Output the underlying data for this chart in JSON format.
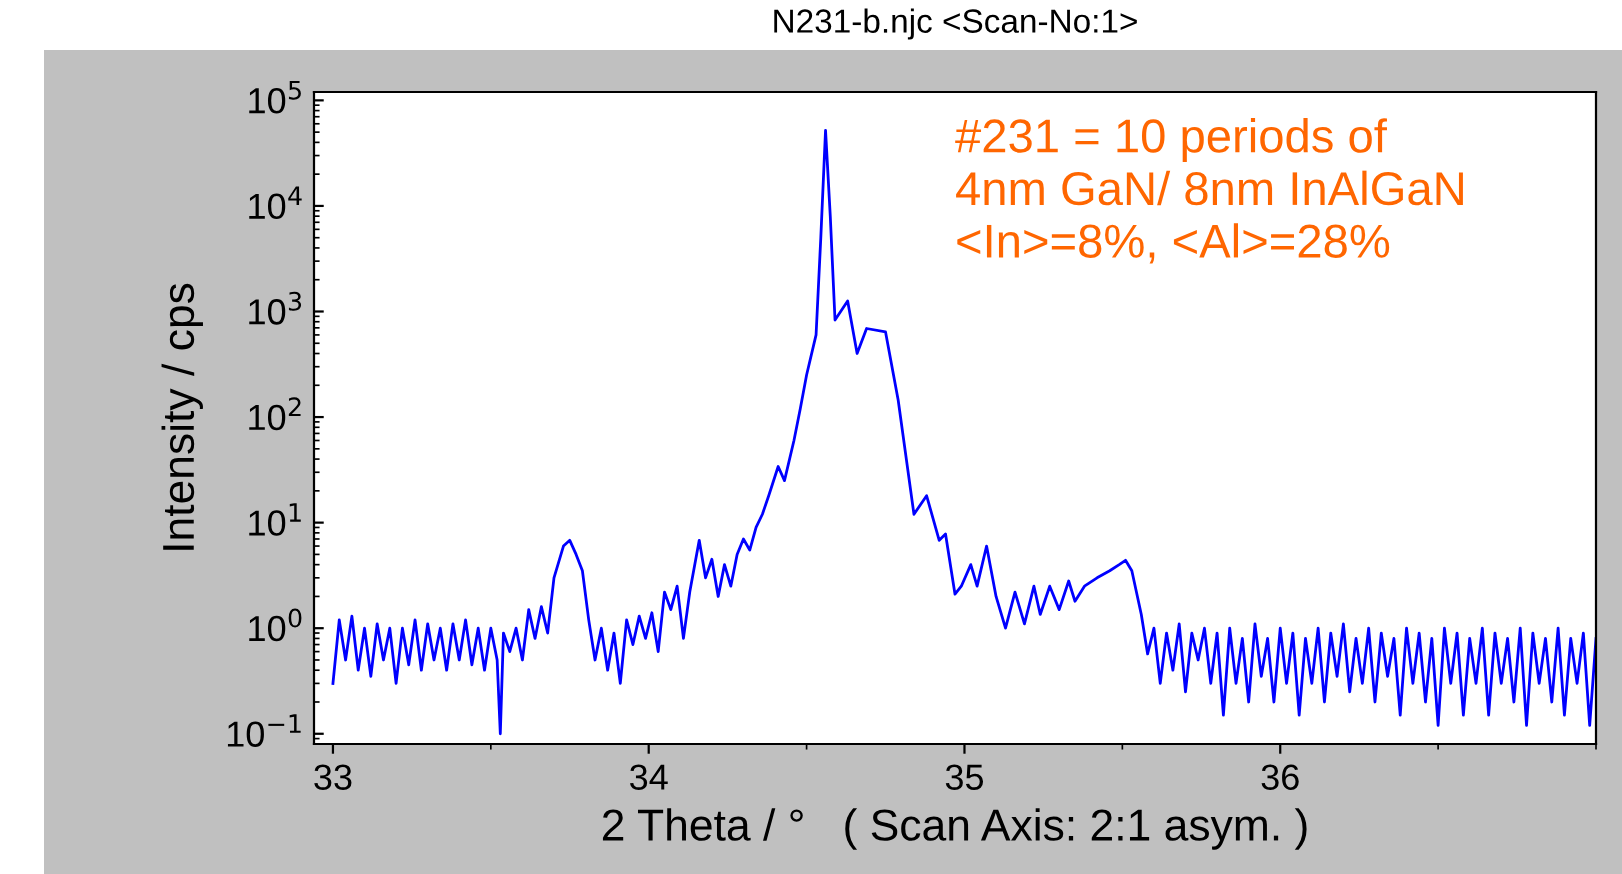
{
  "chart_data": {
    "type": "line",
    "title": "N231-b.njc <Scan-No:1>",
    "xlabel": "2 Theta / °   ( Scan Axis: 2:1 asym. )",
    "ylabel": "Intensity / cps",
    "annotations": [
      "#231 = 10 periods of\n4nm GaN/ 8nm InAlGaN\n<In>=8%, <Al>=28%"
    ],
    "log": "y",
    "grid": false,
    "legend": false,
    "marker": "none",
    "line_style": "solid",
    "xlim": [
      32.94,
      37.0
    ],
    "xticks": [
      33,
      34,
      35,
      36
    ],
    "ylim": [
      0.08,
      120000
    ],
    "yticks": [
      {
        "value": 0.1,
        "label": "10$^{−1}$"
      },
      {
        "value": 1,
        "label": "10$^{0}$"
      },
      {
        "value": 10,
        "label": "10$^{1}$"
      },
      {
        "value": 100,
        "label": "10$^{2}$"
      },
      {
        "value": 1000,
        "label": "10$^{3}$"
      },
      {
        "value": 10000,
        "label": "10$^{4}$"
      },
      {
        "value": 100000,
        "label": "10$^{5}$"
      }
    ],
    "series": [
      {
        "color": "#0000ff",
        "x": [
          33.0,
          33.02,
          33.04,
          33.06,
          33.08,
          33.1,
          33.12,
          33.14,
          33.16,
          33.18,
          33.2,
          33.22,
          33.24,
          33.26,
          33.28,
          33.3,
          33.32,
          33.34,
          33.36,
          33.38,
          33.4,
          33.42,
          33.44,
          33.46,
          33.48,
          33.5,
          33.52,
          33.53,
          33.54,
          33.56,
          33.58,
          33.6,
          33.62,
          33.64,
          33.66,
          33.68,
          33.7,
          33.73,
          33.75,
          33.77,
          33.79,
          33.81,
          33.83,
          33.85,
          33.87,
          33.89,
          33.91,
          33.93,
          33.95,
          33.97,
          33.99,
          34.01,
          34.03,
          34.05,
          34.07,
          34.09,
          34.11,
          34.13,
          34.16,
          34.18,
          34.2,
          34.22,
          34.24,
          34.26,
          34.28,
          34.3,
          34.32,
          34.34,
          34.36,
          34.38,
          34.41,
          34.43,
          34.46,
          34.48,
          34.5,
          34.53,
          34.545,
          34.56,
          34.575,
          34.59,
          34.63,
          34.66,
          34.69,
          34.75,
          34.79,
          34.84,
          34.88,
          34.92,
          34.94,
          34.97,
          34.99,
          35.02,
          35.04,
          35.07,
          35.1,
          35.13,
          35.16,
          35.19,
          35.22,
          35.24,
          35.27,
          35.3,
          35.33,
          35.35,
          35.38,
          35.42,
          35.46,
          35.49,
          35.51,
          35.53,
          35.56,
          35.58,
          35.6,
          35.62,
          35.64,
          35.66,
          35.68,
          35.7,
          35.72,
          35.74,
          35.76,
          35.78,
          35.8,
          35.82,
          35.84,
          35.86,
          35.88,
          35.9,
          35.92,
          35.94,
          35.96,
          35.98,
          36.0,
          36.02,
          36.04,
          36.06,
          36.08,
          36.1,
          36.12,
          36.14,
          36.16,
          36.18,
          36.2,
          36.22,
          36.24,
          36.26,
          36.28,
          36.3,
          36.32,
          36.34,
          36.36,
          36.38,
          36.4,
          36.42,
          36.44,
          36.46,
          36.48,
          36.5,
          36.52,
          36.54,
          36.56,
          36.58,
          36.6,
          36.62,
          36.64,
          36.66,
          36.68,
          36.7,
          36.72,
          36.74,
          36.76,
          36.78,
          36.8,
          36.82,
          36.84,
          36.86,
          36.88,
          36.9,
          36.92,
          36.94,
          36.96,
          36.98,
          37.0
        ],
        "values": [
          0.3,
          1.2,
          0.5,
          1.3,
          0.4,
          1.0,
          0.35,
          1.1,
          0.5,
          1.0,
          0.3,
          1.0,
          0.45,
          1.2,
          0.4,
          1.1,
          0.5,
          1.0,
          0.4,
          1.1,
          0.5,
          1.2,
          0.45,
          1.0,
          0.4,
          1.0,
          0.5,
          0.1,
          0.9,
          0.6,
          1.0,
          0.5,
          1.5,
          0.8,
          1.6,
          0.9,
          3,
          6,
          6.8,
          5,
          3.5,
          1.2,
          0.5,
          1.0,
          0.4,
          0.9,
          0.3,
          1.2,
          0.7,
          1.3,
          0.8,
          1.4,
          0.6,
          2.2,
          1.5,
          2.5,
          0.8,
          2.2,
          6.8,
          3,
          4.5,
          2,
          4,
          2.5,
          5,
          7,
          5.5,
          9,
          12,
          18,
          34,
          25,
          60,
          120,
          250,
          600,
          5000,
          52000,
          8000,
          830,
          1260,
          400,
          690,
          640,
          145,
          12,
          18,
          6.8,
          7.8,
          2.1,
          2.5,
          4,
          2.5,
          6,
          2,
          1.0,
          2.2,
          1.1,
          2.5,
          1.35,
          2.5,
          1.5,
          2.8,
          1.8,
          2.5,
          3,
          3.5,
          4,
          4.4,
          3.5,
          1.35,
          0.57,
          1.0,
          0.3,
          0.9,
          0.4,
          1.1,
          0.25,
          0.9,
          0.5,
          1.0,
          0.3,
          0.9,
          0.15,
          1.0,
          0.3,
          0.8,
          0.2,
          1.1,
          0.35,
          0.8,
          0.2,
          1.0,
          0.3,
          0.9,
          0.15,
          0.8,
          0.3,
          1.0,
          0.2,
          0.9,
          0.35,
          1.1,
          0.25,
          0.8,
          0.3,
          1.0,
          0.2,
          0.9,
          0.35,
          0.8,
          0.15,
          1.0,
          0.3,
          0.9,
          0.2,
          0.8,
          0.12,
          1.0,
          0.3,
          0.9,
          0.15,
          0.8,
          0.3,
          1.0,
          0.15,
          0.9,
          0.3,
          0.8,
          0.2,
          1.0,
          0.12,
          0.9,
          0.3,
          0.8,
          0.2,
          1.0,
          0.15,
          0.8,
          0.3,
          0.9,
          0.12,
          0.8
        ]
      }
    ]
  }
}
